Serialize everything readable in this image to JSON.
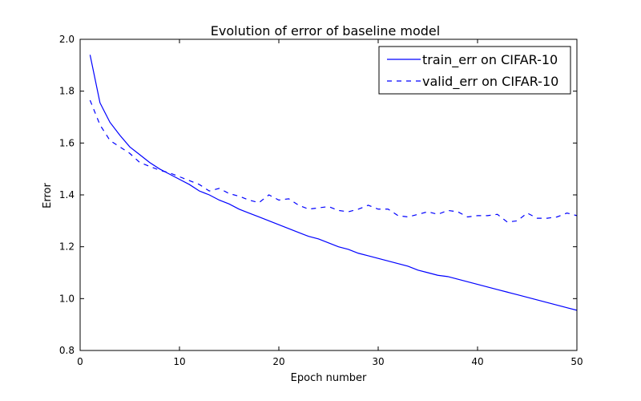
{
  "chart_data": {
    "type": "line",
    "title": "Evolution of error of baseline model",
    "xlabel": "Epoch number",
    "ylabel": "Error",
    "xlim": [
      0,
      50
    ],
    "ylim": [
      0.8,
      2.0
    ],
    "xticks": [
      "0",
      "10",
      "20",
      "30",
      "40",
      "50"
    ],
    "yticks": [
      "0.8",
      "1.0",
      "1.2",
      "1.4",
      "1.6",
      "1.8",
      "2.0"
    ],
    "grid": false,
    "legend_position": "top-right",
    "x": [
      1,
      2,
      3,
      4,
      5,
      6,
      7,
      8,
      9,
      10,
      11,
      12,
      13,
      14,
      15,
      16,
      17,
      18,
      19,
      20,
      21,
      22,
      23,
      24,
      25,
      26,
      27,
      28,
      29,
      30,
      31,
      32,
      33,
      34,
      35,
      36,
      37,
      38,
      39,
      40,
      41,
      42,
      43,
      44,
      45,
      46,
      47,
      48,
      49,
      50
    ],
    "series": [
      {
        "name": "train_err on CIFAR-10",
        "color": "#0000ff",
        "linestyle": "solid",
        "values": [
          1.94,
          1.755,
          1.68,
          1.63,
          1.585,
          1.555,
          1.525,
          1.5,
          1.48,
          1.46,
          1.44,
          1.415,
          1.4,
          1.38,
          1.365,
          1.345,
          1.33,
          1.315,
          1.3,
          1.285,
          1.27,
          1.255,
          1.24,
          1.23,
          1.215,
          1.2,
          1.19,
          1.175,
          1.165,
          1.155,
          1.145,
          1.135,
          1.125,
          1.11,
          1.1,
          1.09,
          1.085,
          1.075,
          1.065,
          1.055,
          1.045,
          1.035,
          1.025,
          1.015,
          1.005,
          0.995,
          0.985,
          0.975,
          0.965,
          0.955
        ]
      },
      {
        "name": "valid_err on CIFAR-10",
        "color": "#0000ff",
        "linestyle": "dashed",
        "values": [
          1.765,
          1.67,
          1.61,
          1.585,
          1.56,
          1.525,
          1.51,
          1.495,
          1.485,
          1.47,
          1.455,
          1.44,
          1.415,
          1.425,
          1.405,
          1.395,
          1.38,
          1.37,
          1.4,
          1.38,
          1.385,
          1.36,
          1.345,
          1.35,
          1.355,
          1.34,
          1.335,
          1.345,
          1.36,
          1.345,
          1.345,
          1.32,
          1.315,
          1.325,
          1.335,
          1.325,
          1.34,
          1.335,
          1.315,
          1.32,
          1.32,
          1.325,
          1.295,
          1.3,
          1.33,
          1.31,
          1.31,
          1.315,
          1.33,
          1.32
        ]
      }
    ]
  }
}
